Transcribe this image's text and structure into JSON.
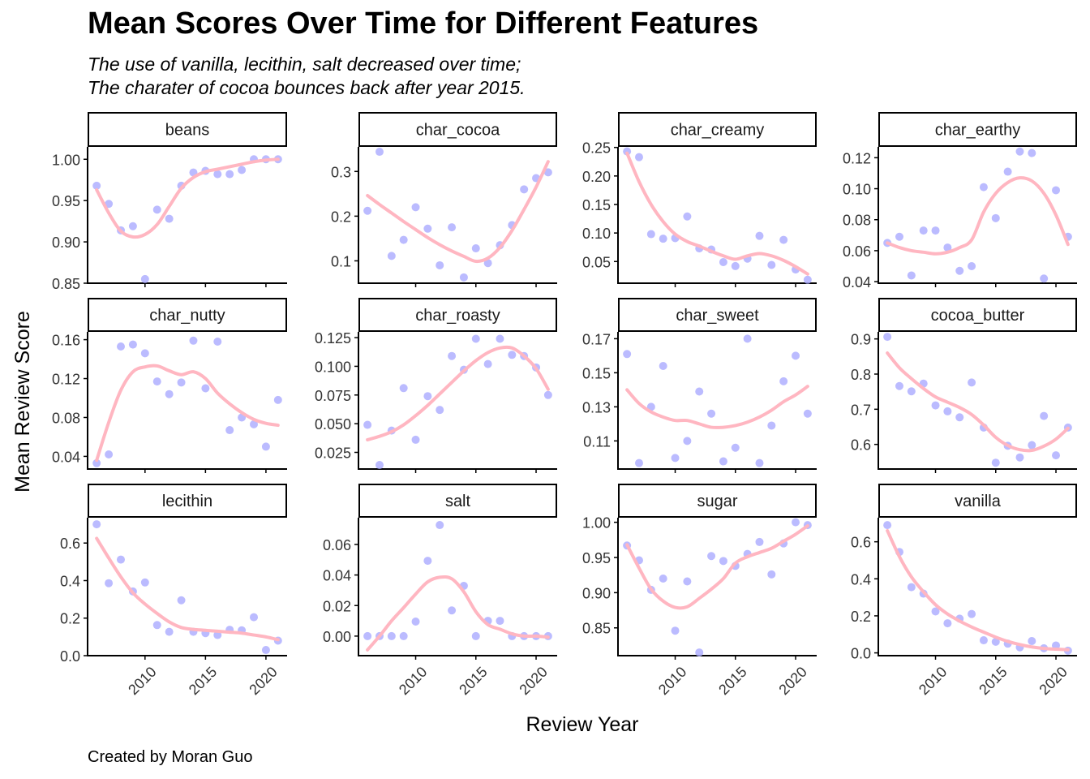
{
  "title": "Mean Scores Over Time for Different Features",
  "subtitle_lines": [
    "The use of vanilla, lecithin, salt decreased over time;",
    "The charater of cocoa bounces back after year 2015."
  ],
  "caption": "Created by Moran Guo",
  "colors": {
    "point": "#aaaaff",
    "smooth": "#ffb6c1",
    "axis": "#000000",
    "text": "#333333"
  },
  "chart_data": {
    "type": "scatter",
    "xlabel": "Review Year",
    "ylabel": "Mean Review Score",
    "xlim": [
      2005.25,
      2021.75
    ],
    "x_ticks": [
      2010,
      2015,
      2020
    ],
    "x": [
      2006,
      2007,
      2008,
      2009,
      2010,
      2011,
      2012,
      2013,
      2014,
      2015,
      2016,
      2017,
      2018,
      2019,
      2020,
      2021
    ],
    "panels": [
      {
        "name": "beans",
        "ylim": [
          0.85,
          1.015
        ],
        "y_ticks": [
          0.85,
          0.9,
          0.95,
          1.0
        ],
        "tick_labels": [
          "0.85",
          "0.90",
          "0.95",
          "1.00"
        ],
        "values": [
          0.968,
          0.946,
          0.914,
          0.919,
          0.855,
          0.939,
          0.928,
          0.968,
          0.984,
          0.986,
          0.982,
          0.982,
          0.987,
          1.0,
          1.0,
          1.0
        ],
        "smooth": [
          0.963,
          0.935,
          0.913,
          0.906,
          0.909,
          0.921,
          0.943,
          0.965,
          0.978,
          0.985,
          0.988,
          0.991,
          0.994,
          0.997,
          0.999,
          1.0
        ]
      },
      {
        "name": "char_cocoa",
        "ylim": [
          0.05,
          0.355
        ],
        "y_ticks": [
          0.1,
          0.2,
          0.3
        ],
        "tick_labels": [
          "0.1",
          "0.2",
          "0.3"
        ],
        "values": [
          0.212,
          0.344,
          0.111,
          0.147,
          0.22,
          0.172,
          0.09,
          0.175,
          0.063,
          0.128,
          0.095,
          0.135,
          0.18,
          0.26,
          0.285,
          0.298
        ],
        "smooth": [
          0.246,
          0.226,
          0.207,
          0.188,
          0.17,
          0.152,
          0.136,
          0.122,
          0.11,
          0.099,
          0.106,
          0.13,
          0.168,
          0.215,
          0.265,
          0.322
        ]
      },
      {
        "name": "char_creamy",
        "ylim": [
          0.012,
          0.251
        ],
        "y_ticks": [
          0.05,
          0.1,
          0.15,
          0.2,
          0.25
        ],
        "tick_labels": [
          "0.05",
          "0.10",
          "0.15",
          "0.20",
          "0.25"
        ],
        "values": [
          0.243,
          0.233,
          0.098,
          0.09,
          0.091,
          0.129,
          0.073,
          0.071,
          0.049,
          0.042,
          0.055,
          0.095,
          0.044,
          0.088,
          0.036,
          0.018
        ],
        "smooth": [
          0.24,
          0.19,
          0.15,
          0.12,
          0.098,
          0.085,
          0.077,
          0.068,
          0.06,
          0.054,
          0.06,
          0.064,
          0.06,
          0.052,
          0.041,
          0.028
        ]
      },
      {
        "name": "char_earthy",
        "ylim": [
          0.039,
          0.127
        ],
        "y_ticks": [
          0.04,
          0.06,
          0.08,
          0.1,
          0.12
        ],
        "tick_labels": [
          "0.04",
          "0.06",
          "0.08",
          "0.10",
          "0.12"
        ],
        "values": [
          0.065,
          0.069,
          0.044,
          0.073,
          0.073,
          0.062,
          0.047,
          0.05,
          0.101,
          0.081,
          0.111,
          0.124,
          0.123,
          0.042,
          0.099,
          0.069
        ],
        "smooth": [
          0.065,
          0.062,
          0.06,
          0.059,
          0.058,
          0.059,
          0.062,
          0.067,
          0.085,
          0.097,
          0.104,
          0.107,
          0.105,
          0.097,
          0.083,
          0.064
        ]
      },
      {
        "name": "char_nutty",
        "ylim": [
          0.027,
          0.168
        ],
        "y_ticks": [
          0.04,
          0.08,
          0.12,
          0.16
        ],
        "tick_labels": [
          "0.04",
          "0.08",
          "0.12",
          "0.16"
        ],
        "values": [
          0.033,
          0.042,
          0.153,
          0.155,
          0.146,
          0.117,
          0.104,
          0.116,
          0.159,
          0.11,
          0.158,
          0.067,
          0.08,
          0.073,
          0.05,
          0.098
        ],
        "smooth": [
          0.036,
          0.075,
          0.108,
          0.127,
          0.132,
          0.133,
          0.128,
          0.124,
          0.127,
          0.12,
          0.105,
          0.094,
          0.085,
          0.078,
          0.074,
          0.072
        ]
      },
      {
        "name": "char_roasty",
        "ylim": [
          0.0105,
          0.13
        ],
        "y_ticks": [
          0.025,
          0.05,
          0.075,
          0.1,
          0.125
        ],
        "tick_labels": [
          "0.025",
          "0.050",
          "0.075",
          "0.100",
          "0.125"
        ],
        "values": [
          0.049,
          0.014,
          0.044,
          0.081,
          0.036,
          0.074,
          0.062,
          0.109,
          0.097,
          0.124,
          0.102,
          0.124,
          0.11,
          0.109,
          0.099,
          0.075
        ],
        "smooth": [
          0.036,
          0.039,
          0.043,
          0.049,
          0.057,
          0.066,
          0.076,
          0.086,
          0.096,
          0.105,
          0.112,
          0.116,
          0.116,
          0.109,
          0.098,
          0.08
        ]
      },
      {
        "name": "char_sweet",
        "ylim": [
          0.0935,
          0.174
        ],
        "y_ticks": [
          0.11,
          0.13,
          0.15,
          0.17
        ],
        "tick_labels": [
          "0.11",
          "0.13",
          "0.15",
          "0.17"
        ],
        "values": [
          0.161,
          0.097,
          0.13,
          0.154,
          0.1,
          0.11,
          0.139,
          0.126,
          0.098,
          0.106,
          0.17,
          0.097,
          0.119,
          0.145,
          0.16,
          0.126
        ],
        "smooth": [
          0.14,
          0.132,
          0.127,
          0.124,
          0.122,
          0.122,
          0.12,
          0.118,
          0.118,
          0.119,
          0.121,
          0.124,
          0.128,
          0.133,
          0.137,
          0.142
        ]
      },
      {
        "name": "cocoa_butter",
        "ylim": [
          0.53,
          0.92
        ],
        "y_ticks": [
          0.6,
          0.7,
          0.8,
          0.9
        ],
        "tick_labels": [
          "0.6",
          "0.7",
          "0.8",
          "0.9"
        ],
        "values": [
          0.906,
          0.766,
          0.751,
          0.773,
          0.711,
          0.694,
          0.677,
          0.776,
          0.648,
          0.548,
          0.596,
          0.563,
          0.598,
          0.681,
          0.569,
          0.648
        ],
        "smooth": [
          0.86,
          0.818,
          0.787,
          0.759,
          0.735,
          0.72,
          0.705,
          0.685,
          0.655,
          0.62,
          0.597,
          0.585,
          0.583,
          0.595,
          0.615,
          0.646
        ]
      },
      {
        "name": "lecithin",
        "ylim": [
          0.0,
          0.735
        ],
        "y_ticks": [
          0.0,
          0.2,
          0.4,
          0.6
        ],
        "tick_labels": [
          "0.0",
          "0.2",
          "0.4",
          "0.6"
        ],
        "values": [
          0.7,
          0.386,
          0.512,
          0.342,
          0.39,
          0.163,
          0.127,
          0.295,
          0.127,
          0.12,
          0.11,
          0.138,
          0.135,
          0.205,
          0.03,
          0.08
        ],
        "smooth": [
          0.625,
          0.52,
          0.42,
          0.335,
          0.275,
          0.225,
          0.18,
          0.15,
          0.14,
          0.135,
          0.13,
          0.125,
          0.12,
          0.11,
          0.1,
          0.085
        ]
      },
      {
        "name": "salt",
        "ylim": [
          -0.0128,
          0.0775
        ],
        "y_ticks": [
          0.0,
          0.02,
          0.04,
          0.06
        ],
        "tick_labels": [
          "0.00",
          "0.02",
          "0.04",
          "0.06"
        ],
        "values": [
          0.0,
          0.0,
          0.0,
          0.0,
          0.0095,
          0.0493,
          0.0727,
          0.0168,
          0.0329,
          0.0,
          0.01,
          0.01,
          0.0,
          0.0,
          0.0,
          0.0
        ],
        "smooth": [
          -0.009,
          0.0,
          0.01,
          0.0186,
          0.0275,
          0.0355,
          0.0385,
          0.0375,
          0.029,
          0.016,
          0.0075,
          0.0045,
          0.0015,
          0.0,
          0.0,
          -0.0007
        ]
      },
      {
        "name": "sugar",
        "ylim": [
          0.8105,
          1.0065
        ],
        "y_ticks": [
          0.85,
          0.9,
          0.95,
          1.0
        ],
        "tick_labels": [
          "0.85",
          "0.90",
          "0.95",
          "1.00"
        ],
        "values": [
          0.967,
          0.946,
          0.904,
          0.92,
          0.846,
          0.916,
          0.815,
          0.952,
          0.945,
          0.938,
          0.955,
          0.972,
          0.926,
          0.97,
          1.0,
          0.996
        ],
        "smooth": [
          0.968,
          0.935,
          0.905,
          0.888,
          0.879,
          0.88,
          0.892,
          0.905,
          0.92,
          0.942,
          0.951,
          0.957,
          0.963,
          0.973,
          0.983,
          0.995
        ]
      },
      {
        "name": "vanilla",
        "ylim": [
          -0.015,
          0.73
        ],
        "y_ticks": [
          0.0,
          0.2,
          0.4,
          0.6
        ],
        "tick_labels": [
          "0.0",
          "0.2",
          "0.4",
          "0.6"
        ],
        "values": [
          0.69,
          0.545,
          0.355,
          0.32,
          0.224,
          0.16,
          0.185,
          0.21,
          0.068,
          0.06,
          0.05,
          0.03,
          0.064,
          0.025,
          0.04,
          0.012
        ],
        "smooth": [
          0.66,
          0.52,
          0.41,
          0.33,
          0.26,
          0.21,
          0.172,
          0.14,
          0.112,
          0.085,
          0.062,
          0.045,
          0.032,
          0.024,
          0.02,
          0.017
        ]
      }
    ]
  }
}
